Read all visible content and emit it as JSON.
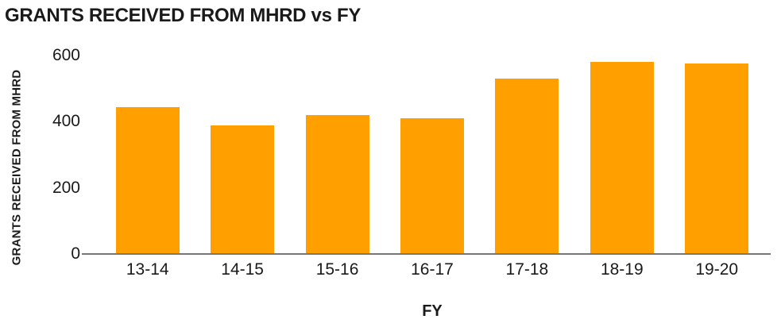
{
  "chart_data": {
    "type": "bar",
    "title": "GRANTS RECEIVED FROM MHRD vs FY",
    "xlabel": "FY",
    "ylabel": "GRANTS RECEIVED FROM MHRD",
    "categories": [
      "13-14",
      "14-15",
      "15-16",
      "16-17",
      "17-18",
      "18-19",
      "19-20"
    ],
    "values": [
      445,
      390,
      420,
      410,
      530,
      580,
      575
    ],
    "yticks": [
      0,
      200,
      400,
      600
    ],
    "ylim": [
      0,
      600
    ],
    "grid": false,
    "legend": false,
    "colors": {
      "bar": "#FFA000",
      "axis_line": "#777777",
      "text": "#1A1A1A",
      "background": "#FFFFFF"
    }
  }
}
